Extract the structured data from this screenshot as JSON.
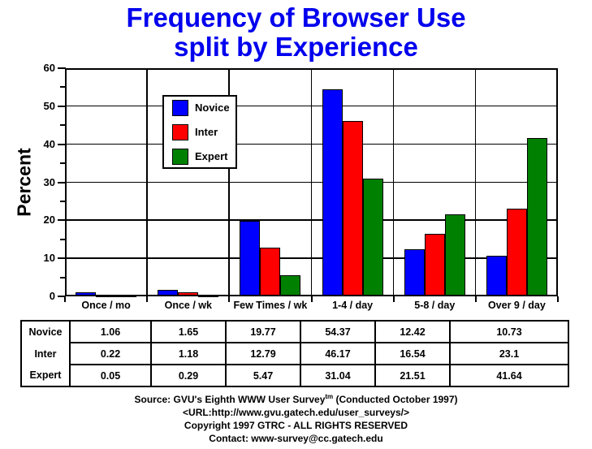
{
  "title": {
    "line1": "Frequency of Browser Use",
    "line2": "split by Experience"
  },
  "colors": {
    "title": "#0000ee",
    "axis": "#000000",
    "novice": "#0000ff",
    "inter": "#ff0000",
    "expert": "#008000"
  },
  "chart_data": {
    "type": "bar",
    "title": "Frequency of Browser Use split by Experience",
    "xlabel": "",
    "ylabel": "Percent",
    "ylim": [
      0,
      60
    ],
    "y_major_ticks": [
      0,
      10,
      20,
      30,
      40,
      50,
      60
    ],
    "y_minor_tick_step": 5,
    "grid": true,
    "legend_position": "inside-upper-left",
    "categories": [
      "Once / mo",
      "Once / wk",
      "Few Times / wk",
      "1-4 / day",
      "5-8 / day",
      "Over 9 / day"
    ],
    "series": [
      {
        "name": "Novice",
        "color": "#0000ff",
        "values": [
          1.06,
          1.65,
          19.77,
          54.37,
          12.42,
          10.73
        ]
      },
      {
        "name": "Inter",
        "color": "#ff0000",
        "values": [
          0.22,
          1.18,
          12.79,
          46.17,
          16.54,
          23.1
        ]
      },
      {
        "name": "Expert",
        "color": "#008000",
        "values": [
          0.05,
          0.29,
          5.47,
          31.04,
          21.51,
          41.64
        ]
      }
    ]
  },
  "table": {
    "row_labels": [
      "Novice",
      "Inter",
      "Expert"
    ],
    "rows": [
      [
        "1.06",
        "1.65",
        "19.77",
        "54.37",
        "12.42",
        "10.73"
      ],
      [
        "0.22",
        "1.18",
        "12.79",
        "46.17",
        "16.54",
        "23.1"
      ],
      [
        "0.05",
        "0.29",
        "5.47",
        "31.04",
        "21.51",
        "41.64"
      ]
    ]
  },
  "footer": {
    "source_pre": "Source: GVU's Eighth WWW User Survey",
    "source_sup": "tm",
    "source_post": " (Conducted October 1997)",
    "url_line": "<URL:http://www.gvu.gatech.edu/user_surveys/>",
    "copyright_line": "Copyright 1997 GTRC - ALL RIGHTS RESERVED",
    "contact_line": "Contact: www-survey@cc.gatech.edu"
  }
}
